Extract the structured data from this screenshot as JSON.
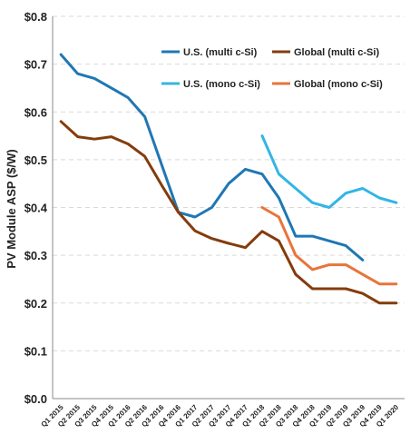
{
  "chart_data": {
    "type": "line",
    "title": "",
    "xlabel": "",
    "ylabel": "PV Module ASP ($/W)",
    "ylim": [
      0,
      0.8
    ],
    "yticks": [
      0,
      0.1,
      0.2,
      0.3,
      0.4,
      0.5,
      0.6,
      0.7,
      0.8
    ],
    "ytick_labels": [
      "$0.0",
      "$0.1",
      "$0.2",
      "$0.3",
      "$0.4",
      "$0.5",
      "$0.6",
      "$0.7",
      "$0.8"
    ],
    "grid": true,
    "legend_position": "top-right",
    "categories": [
      "Q1 2015",
      "Q2 2015",
      "Q3 2015",
      "Q4 2015",
      "Q1 2016",
      "Q2 2016",
      "Q3 2016",
      "Q4 2016",
      "Q1 2017",
      "Q2 2017",
      "Q3 2017",
      "Q4 2017",
      "Q1 2018",
      "Q2 2018",
      "Q3 2018",
      "Q4 2018",
      "Q1 2019",
      "Q2 2019",
      "Q3 2019",
      "Q4 2019",
      "Q1 2020"
    ],
    "series": [
      {
        "name": "U.S. (multi c-Si)",
        "color": "#1f77b4",
        "values": [
          0.72,
          0.68,
          0.67,
          0.65,
          0.63,
          0.59,
          0.49,
          0.39,
          0.38,
          0.4,
          0.45,
          0.48,
          0.47,
          0.42,
          0.34,
          0.34,
          0.33,
          0.32,
          0.29,
          null,
          null
        ]
      },
      {
        "name": "Global (multi c-Si)",
        "color": "#843c0c",
        "values": [
          0.58,
          0.548,
          0.543,
          0.548,
          0.533,
          0.507,
          0.447,
          0.39,
          0.351,
          0.335,
          0.325,
          0.316,
          0.35,
          0.33,
          0.26,
          0.23,
          0.23,
          0.23,
          0.22,
          0.2,
          0.2
        ]
      },
      {
        "name": "U.S. (mono c-Si)",
        "color": "#33b5e5",
        "values": [
          null,
          null,
          null,
          null,
          null,
          null,
          null,
          null,
          null,
          null,
          null,
          null,
          0.55,
          0.47,
          0.44,
          0.41,
          0.4,
          0.43,
          0.44,
          0.42,
          0.41
        ]
      },
      {
        "name": "Global (mono c-Si)",
        "color": "#e8743b",
        "values": [
          null,
          null,
          null,
          null,
          null,
          null,
          null,
          null,
          null,
          null,
          null,
          null,
          0.4,
          0.38,
          0.3,
          0.27,
          0.28,
          0.28,
          0.26,
          0.24,
          0.24
        ]
      }
    ]
  }
}
